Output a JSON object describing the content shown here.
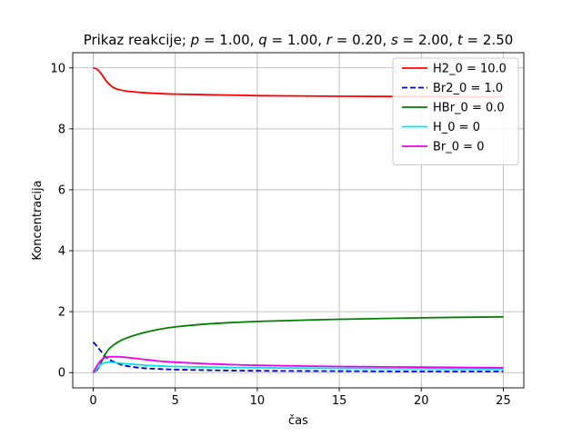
{
  "chart_data": {
    "type": "line",
    "title": "Prikaz reakcije; p = 1.00, q = 1.00, r = 0.20, s = 2.00, t = 2.50",
    "xlabel": "čas",
    "ylabel": "Koncentracija",
    "xlim": [
      -1.25,
      26.25
    ],
    "ylim": [
      -0.5,
      10.5
    ],
    "xticks": [
      0,
      5,
      10,
      15,
      20,
      25
    ],
    "yticks": [
      0,
      2,
      4,
      6,
      8,
      10
    ],
    "grid": true,
    "legend_position": "top-right",
    "series": [
      {
        "name": "H2_0 = 10.0",
        "color": "#ff0000",
        "dash": "solid",
        "x": [
          0,
          0.25,
          0.5,
          0.75,
          1,
          1.25,
          1.5,
          2,
          3,
          4,
          5,
          7,
          10,
          15,
          20,
          25
        ],
        "y": [
          10.0,
          9.95,
          9.8,
          9.6,
          9.45,
          9.35,
          9.3,
          9.24,
          9.19,
          9.16,
          9.14,
          9.12,
          9.09,
          9.07,
          9.06,
          9.05
        ]
      },
      {
        "name": " Br2_0 = 1.0",
        "color": "#0000cc",
        "dash": "dashed",
        "x": [
          0,
          0.25,
          0.5,
          0.75,
          1,
          1.5,
          2,
          3,
          4,
          5,
          7,
          10,
          15,
          20,
          25
        ],
        "y": [
          1.0,
          0.85,
          0.68,
          0.52,
          0.42,
          0.3,
          0.22,
          0.15,
          0.12,
          0.1,
          0.08,
          0.06,
          0.05,
          0.04,
          0.04
        ]
      },
      {
        "name": "HBr_0 = 0.0",
        "color": "#008000",
        "dash": "solid",
        "x": [
          0,
          0.25,
          0.5,
          0.75,
          1,
          1.5,
          2,
          3,
          4,
          5,
          7,
          10,
          15,
          20,
          25
        ],
        "y": [
          0.0,
          0.1,
          0.35,
          0.62,
          0.8,
          1.0,
          1.13,
          1.3,
          1.42,
          1.5,
          1.6,
          1.68,
          1.75,
          1.8,
          1.83
        ]
      },
      {
        "name": "H_0 = 0",
        "color": "#00e5ee",
        "dash": "solid",
        "x": [
          0,
          0.25,
          0.5,
          0.75,
          1,
          1.5,
          2,
          3,
          4,
          5,
          7,
          10,
          15,
          20,
          25
        ],
        "y": [
          0.0,
          0.15,
          0.28,
          0.33,
          0.34,
          0.32,
          0.29,
          0.25,
          0.22,
          0.2,
          0.18,
          0.16,
          0.14,
          0.13,
          0.12
        ]
      },
      {
        "name": "Br_0 = 0",
        "color": "#ee00ee",
        "dash": "solid",
        "x": [
          0,
          0.25,
          0.5,
          0.75,
          1,
          1.5,
          2,
          3,
          4,
          5,
          7,
          10,
          15,
          20,
          25
        ],
        "y": [
          0.0,
          0.25,
          0.42,
          0.5,
          0.52,
          0.52,
          0.5,
          0.44,
          0.38,
          0.34,
          0.29,
          0.24,
          0.2,
          0.18,
          0.16
        ]
      }
    ]
  }
}
